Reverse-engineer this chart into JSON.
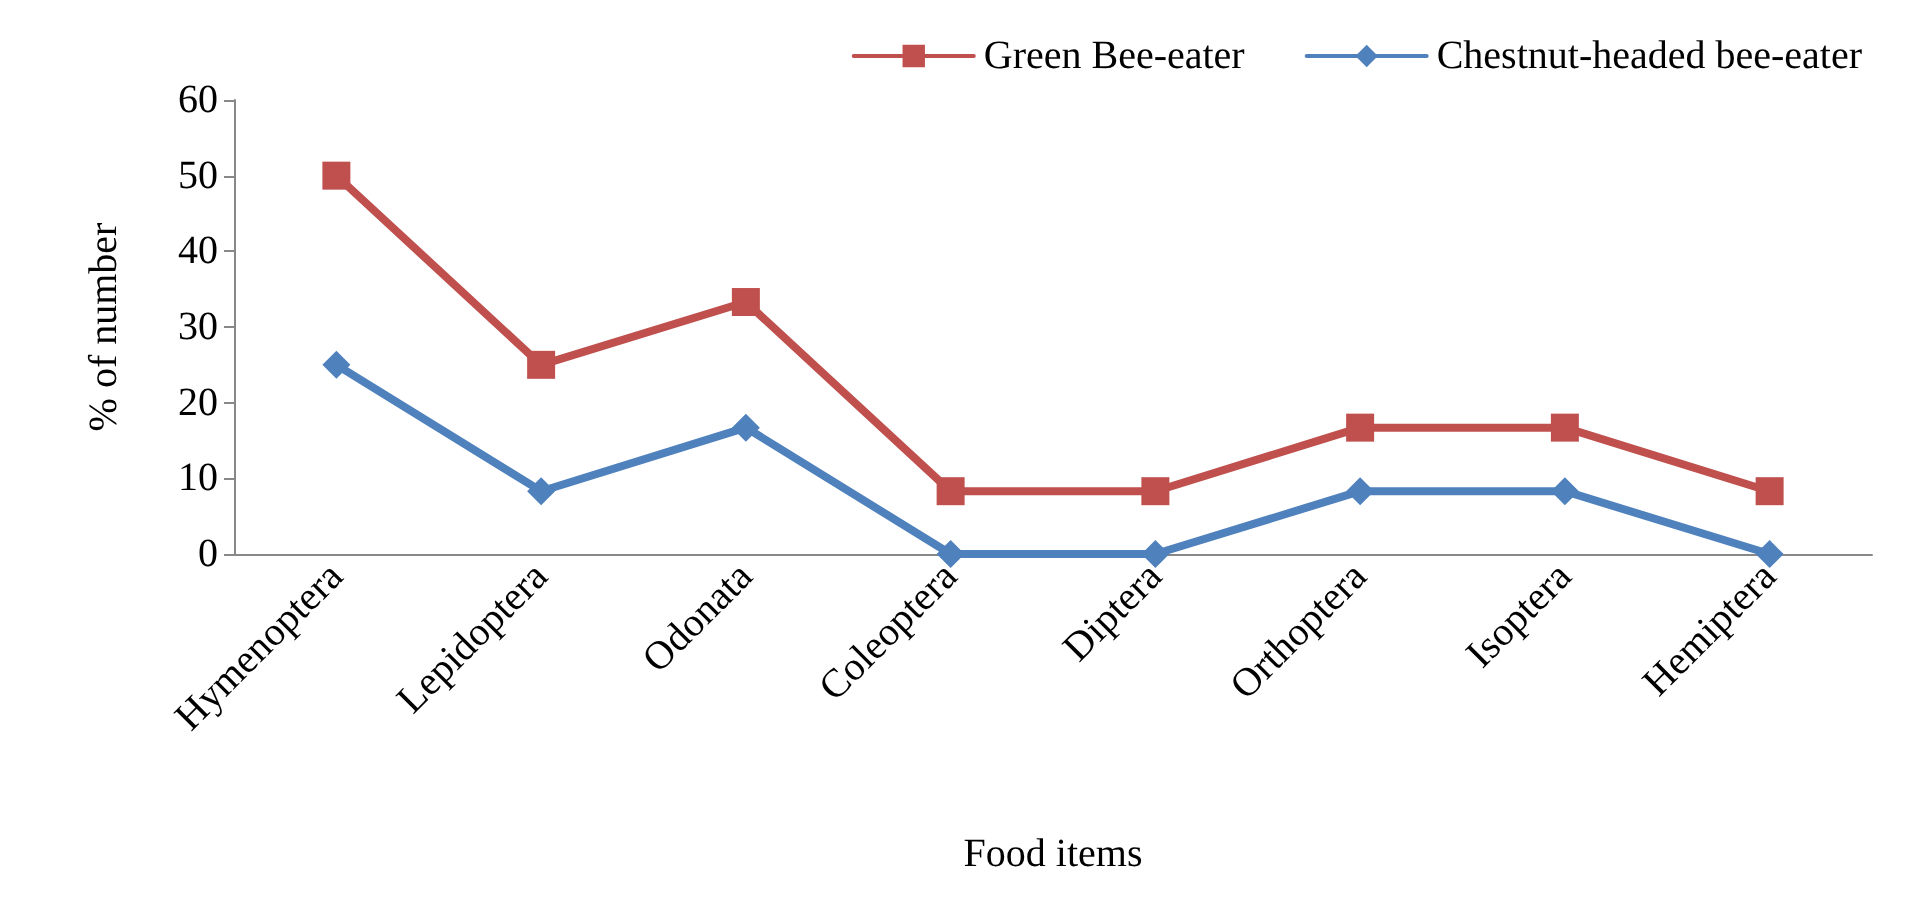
{
  "chart_data": {
    "type": "line",
    "xlabel": "Food items",
    "ylabel": "% of number",
    "categories": [
      "Hymenoptera",
      "Lepidoptera",
      "Odonata",
      "Coleoptera",
      "Diptera",
      "Orthoptera",
      "Isoptera",
      "Hemiptera"
    ],
    "series": [
      {
        "name": "Green Bee-eater",
        "color": "#c0504d",
        "marker": "square",
        "values": [
          50,
          25,
          33.3,
          8.3,
          8.3,
          16.7,
          16.7,
          8.3
        ]
      },
      {
        "name": "Chestnut-headed bee-eater",
        "color": "#4f81bd",
        "marker": "diamond",
        "values": [
          25,
          8.3,
          16.7,
          0,
          0,
          8.3,
          8.3,
          0
        ]
      }
    ],
    "ylim": [
      0,
      60
    ],
    "yticks": [
      0,
      10,
      20,
      30,
      40,
      50,
      60
    ],
    "grid": false,
    "legend": "top right",
    "line_style": "solid"
  }
}
